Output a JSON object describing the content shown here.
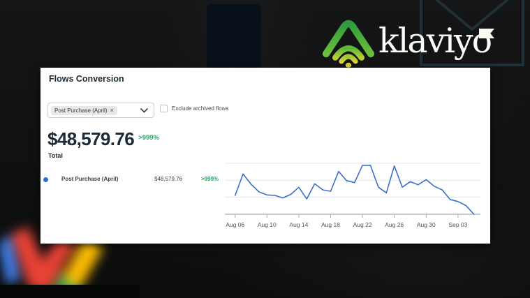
{
  "brand": {
    "wordmark": "klaviyo",
    "logo_colors": {
      "roof_top": "#2f9b3d",
      "roof_bottom": "#6cbf3b",
      "arc_mid_start": "#5cb83a",
      "arc_mid_end": "#b8cf36",
      "arc_inner_start": "#9cc838",
      "arc_inner_end": "#d8d23a",
      "dot": "#e5d33f",
      "flag": "#fcfcf7"
    }
  },
  "background": {
    "gmail_logo_colors": {
      "blue": "#4285F4",
      "red": "#EA4335",
      "yellow": "#FBBC05",
      "green": "#34A853"
    }
  },
  "card": {
    "title": "Flows Conversion",
    "filter": {
      "selected_tag": "Post Purchase (April)",
      "remove_icon": "×"
    },
    "checkbox": {
      "label": "Exclude archived flows",
      "checked": false
    },
    "summary": {
      "total_value": "$48,579.76",
      "delta": ">999%",
      "total_label": "Total"
    },
    "legend": {
      "series_label": "Post Purchase (April)",
      "value": "$48,579.76",
      "delta": ">999%",
      "dot_color": "#2e6ec9"
    },
    "accent_green": "#2f9e63"
  },
  "chart_data": {
    "type": "line",
    "title": "",
    "xlabel": "",
    "ylabel": "",
    "y_unit": "normalized 0-100 (no y-axis labels shown in chart)",
    "ylim": [
      0,
      100
    ],
    "grid": true,
    "legend_position": "left-outside",
    "line_color": "#3a70cc",
    "grid_color": "#e4e7e9",
    "axis_color": "#a6acb1",
    "tick_label_color": "#4d565e",
    "x": [
      "Aug 06",
      "Aug 07",
      "Aug 08",
      "Aug 09",
      "Aug 10",
      "Aug 11",
      "Aug 12",
      "Aug 13",
      "Aug 14",
      "Aug 15",
      "Aug 16",
      "Aug 17",
      "Aug 18",
      "Aug 19",
      "Aug 20",
      "Aug 21",
      "Aug 22",
      "Aug 23",
      "Aug 24",
      "Aug 25",
      "Aug 26",
      "Aug 27",
      "Aug 28",
      "Aug 29",
      "Aug 30",
      "Aug 31",
      "Sep 01",
      "Sep 02",
      "Sep 03",
      "Sep 04",
      "Sep 05"
    ],
    "values": [
      37,
      79,
      59,
      44,
      38,
      37,
      32,
      39,
      53,
      30,
      60,
      48,
      45,
      84,
      66,
      62,
      96,
      96,
      53,
      42,
      95,
      53,
      64,
      58,
      68,
      55,
      48,
      29,
      25,
      17,
      0
    ],
    "x_tick_labels": [
      "Aug 06",
      "Aug 10",
      "Aug 14",
      "Aug 18",
      "Aug 22",
      "Aug 26",
      "Aug 30",
      "Sep 03"
    ],
    "tick_indices": [
      0,
      4,
      8,
      12,
      16,
      20,
      24,
      28
    ],
    "series_name": "Post Purchase (April)"
  }
}
